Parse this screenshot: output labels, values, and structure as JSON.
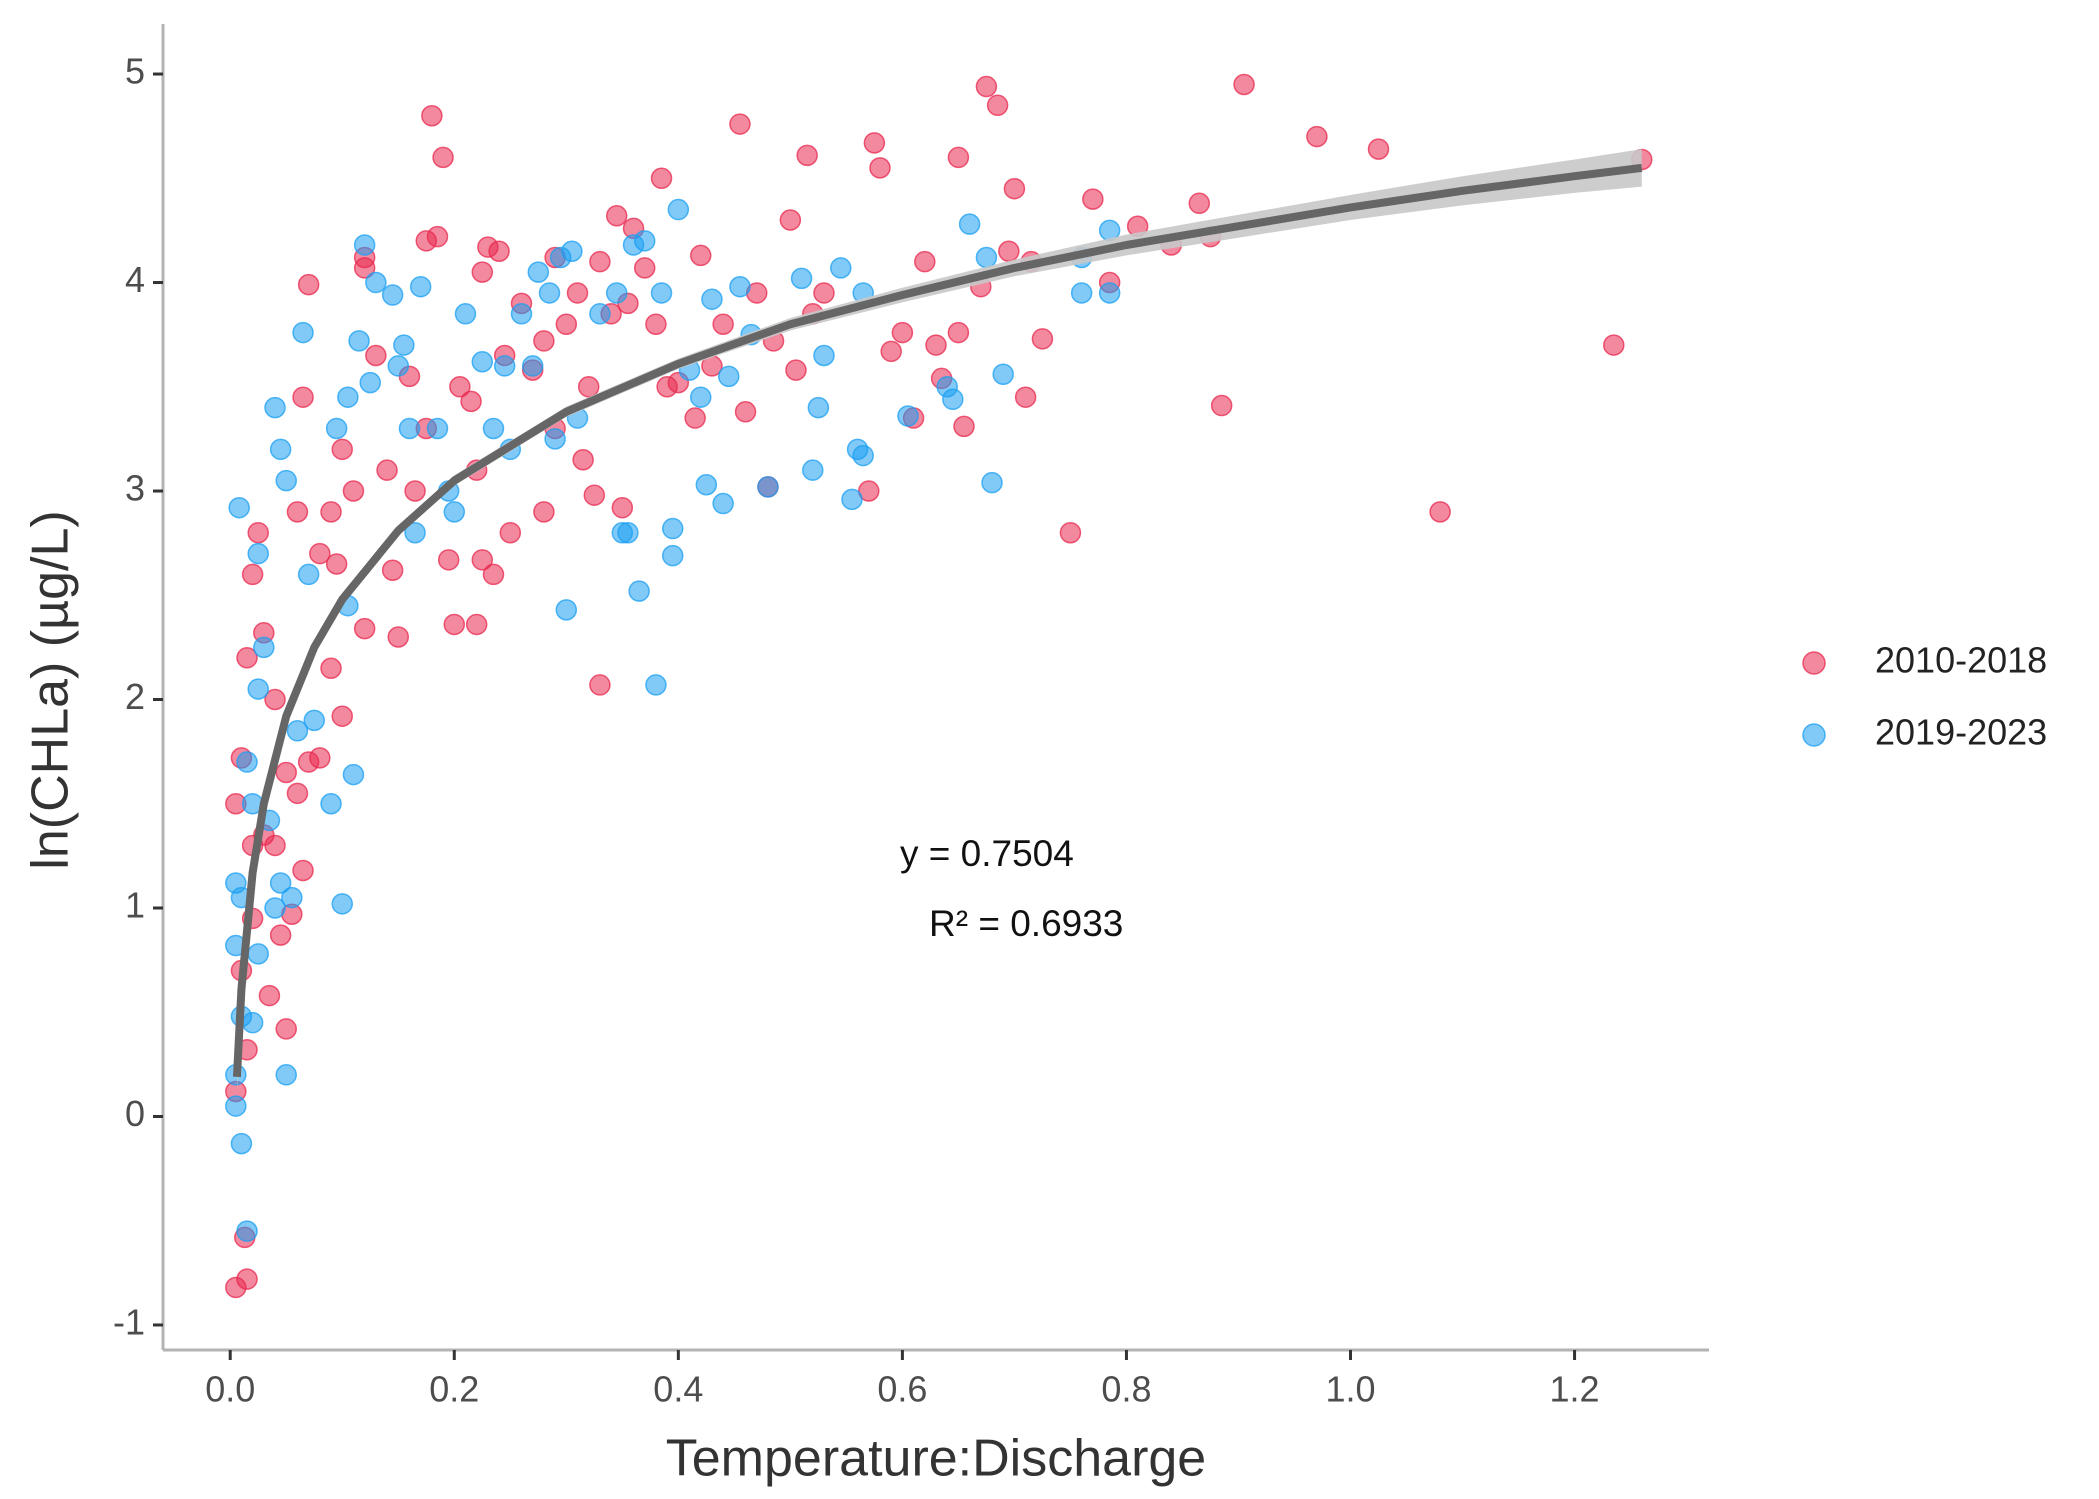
{
  "chart_data": {
    "type": "scatter",
    "x_label": "Temperature:Discharge",
    "y_label": "ln(CHLa) (µg/L)",
    "annotations": [
      "y =  0.7504",
      "R² =  0.6933"
    ],
    "xlim": [
      -0.06,
      1.32
    ],
    "ylim": [
      -1.12,
      5.24
    ],
    "xticks": [
      {
        "value": 0,
        "label": "0.0"
      },
      0.2,
      0.4,
      0.6,
      0.8,
      {
        "value": 1,
        "label": "1.0"
      },
      1.2
    ],
    "yticks": [
      -1,
      0,
      1,
      2,
      3,
      4,
      5
    ],
    "grid": false,
    "legend": "right",
    "series": [
      {
        "name": "2010-2018",
        "color": "#e8284e",
        "x": [
          0.18,
          0.19,
          0.175,
          0.185,
          0.07,
          0.12,
          0.12,
          0.225,
          0.23,
          0.24,
          0.26,
          0.28,
          0.29,
          0.3,
          0.31,
          0.32,
          0.33,
          0.34,
          0.345,
          0.36,
          0.355,
          0.37,
          0.38,
          0.385,
          0.39,
          0.4,
          0.42,
          0.415,
          0.43,
          0.44,
          0.455,
          0.46,
          0.47,
          0.48,
          0.485,
          0.5,
          0.505,
          0.515,
          0.52,
          0.53,
          0.57,
          0.575,
          0.58,
          0.59,
          0.6,
          0.61,
          0.62,
          0.63,
          0.635,
          0.65,
          0.65,
          0.655,
          0.67,
          0.675,
          0.685,
          0.695,
          0.7,
          0.71,
          0.715,
          0.725,
          0.75,
          0.77,
          0.785,
          0.81,
          0.84,
          0.865,
          0.875,
          0.885,
          0.905,
          0.97,
          1.025,
          1.08,
          1.235,
          1.26,
          0.005,
          0.015,
          0.013,
          0.005,
          0.015,
          0.01,
          0.02,
          0.02,
          0.03,
          0.04,
          0.035,
          0.05,
          0.055,
          0.045,
          0.005,
          0.01,
          0.015,
          0.02,
          0.025,
          0.03,
          0.04,
          0.05,
          0.06,
          0.07,
          0.08,
          0.065,
          0.09,
          0.1,
          0.06,
          0.065,
          0.08,
          0.09,
          0.095,
          0.1,
          0.11,
          0.12,
          0.13,
          0.14,
          0.145,
          0.15,
          0.16,
          0.165,
          0.175,
          0.195,
          0.2,
          0.205,
          0.215,
          0.22,
          0.22,
          0.225,
          0.235,
          0.245,
          0.25,
          0.27,
          0.28,
          0.29,
          0.315,
          0.325,
          0.33,
          0.35
        ],
        "y": [
          4.8,
          4.6,
          4.2,
          4.22,
          3.99,
          4.07,
          4.12,
          4.05,
          4.17,
          4.15,
          3.9,
          3.72,
          4.12,
          3.8,
          3.95,
          3.5,
          4.1,
          3.85,
          4.32,
          4.26,
          3.9,
          4.07,
          3.8,
          4.5,
          3.5,
          3.52,
          4.13,
          3.35,
          3.6,
          3.8,
          4.76,
          3.38,
          3.95,
          3.02,
          3.72,
          4.3,
          3.58,
          4.61,
          3.85,
          3.95,
          3.0,
          4.67,
          4.55,
          3.67,
          3.76,
          3.35,
          4.1,
          3.7,
          3.54,
          4.6,
          3.76,
          3.31,
          3.98,
          4.94,
          4.85,
          4.15,
          4.45,
          3.45,
          4.1,
          3.73,
          2.8,
          4.4,
          4.0,
          4.27,
          4.18,
          4.38,
          4.22,
          3.41,
          4.95,
          4.7,
          4.64,
          2.9,
          3.7,
          4.59,
          -0.82,
          -0.78,
          -0.58,
          0.12,
          0.32,
          0.7,
          0.95,
          1.3,
          1.35,
          1.3,
          0.58,
          0.42,
          0.97,
          0.87,
          1.5,
          1.72,
          2.2,
          2.6,
          2.8,
          2.32,
          2.0,
          1.65,
          1.55,
          1.7,
          1.72,
          1.18,
          2.15,
          1.92,
          2.9,
          3.45,
          2.7,
          2.9,
          2.65,
          3.2,
          3.0,
          2.34,
          3.65,
          3.1,
          2.62,
          2.3,
          3.55,
          3.0,
          3.3,
          2.67,
          2.36,
          3.5,
          3.43,
          2.36,
          3.1,
          2.67,
          2.6,
          3.65,
          2.8,
          3.58,
          2.9,
          3.3,
          3.15,
          2.98,
          2.07,
          2.92
        ]
      },
      {
        "name": "2019-2023",
        "color": "#1a9ff2",
        "x": [
          0.005,
          0.01,
          0.015,
          0.005,
          0.01,
          0.02,
          0.025,
          0.005,
          0.005,
          0.01,
          0.015,
          0.02,
          0.025,
          0.03,
          0.035,
          0.04,
          0.045,
          0.05,
          0.055,
          0.06,
          0.008,
          0.025,
          0.04,
          0.045,
          0.05,
          0.065,
          0.07,
          0.075,
          0.09,
          0.1,
          0.11,
          0.105,
          0.095,
          0.105,
          0.115,
          0.12,
          0.125,
          0.13,
          0.145,
          0.15,
          0.155,
          0.16,
          0.165,
          0.17,
          0.185,
          0.195,
          0.2,
          0.21,
          0.225,
          0.235,
          0.245,
          0.25,
          0.26,
          0.27,
          0.275,
          0.285,
          0.29,
          0.295,
          0.3,
          0.305,
          0.31,
          0.33,
          0.345,
          0.35,
          0.355,
          0.36,
          0.365,
          0.37,
          0.38,
          0.385,
          0.395,
          0.395,
          0.4,
          0.41,
          0.42,
          0.425,
          0.43,
          0.44,
          0.445,
          0.455,
          0.465,
          0.48,
          0.51,
          0.52,
          0.525,
          0.53,
          0.545,
          0.555,
          0.56,
          0.565,
          0.565,
          0.605,
          0.64,
          0.645,
          0.66,
          0.675,
          0.68,
          0.69,
          0.76,
          0.76,
          0.785,
          0.785
        ],
        "y": [
          0.05,
          -0.13,
          -0.55,
          0.2,
          0.48,
          0.45,
          0.78,
          0.82,
          1.12,
          1.05,
          1.7,
          1.5,
          2.05,
          2.25,
          1.42,
          1.0,
          1.12,
          0.2,
          1.05,
          1.85,
          2.92,
          2.7,
          3.4,
          3.2,
          3.05,
          3.76,
          2.6,
          1.9,
          1.5,
          1.02,
          1.64,
          2.45,
          3.3,
          3.45,
          3.72,
          4.18,
          3.52,
          4.0,
          3.94,
          3.6,
          3.7,
          3.3,
          2.8,
          3.98,
          3.3,
          3.0,
          2.9,
          3.85,
          3.62,
          3.3,
          3.6,
          3.2,
          3.85,
          3.6,
          4.05,
          3.95,
          3.25,
          4.12,
          2.43,
          4.15,
          3.35,
          3.85,
          3.95,
          2.8,
          2.8,
          4.18,
          2.52,
          4.2,
          2.07,
          3.95,
          2.82,
          2.69,
          4.35,
          3.58,
          3.45,
          3.03,
          3.92,
          2.94,
          3.55,
          3.98,
          3.75,
          3.02,
          4.02,
          3.1,
          3.4,
          3.65,
          4.07,
          2.96,
          3.2,
          3.17,
          3.95,
          3.36,
          3.5,
          3.44,
          4.28,
          4.12,
          3.04,
          3.56,
          3.95,
          4.12,
          4.25,
          3.95
        ]
      }
    ],
    "fit": {
      "color": "#666666",
      "band_color": "#c8c8c8",
      "x": [
        0.006,
        0.01,
        0.02,
        0.03,
        0.05,
        0.075,
        0.1,
        0.15,
        0.2,
        0.3,
        0.4,
        0.5,
        0.6,
        0.7,
        0.8,
        0.9,
        1.0,
        1.1,
        1.2,
        1.26
      ],
      "y": [
        0.19,
        0.61,
        1.17,
        1.5,
        1.92,
        2.25,
        2.48,
        2.81,
        3.05,
        3.38,
        3.61,
        3.8,
        3.94,
        4.07,
        4.18,
        4.27,
        4.36,
        4.44,
        4.51,
        4.55
      ],
      "lower": [
        0.11,
        0.55,
        1.13,
        1.47,
        1.895,
        2.225,
        2.455,
        2.785,
        3.025,
        3.355,
        3.585,
        3.77,
        3.905,
        4.03,
        4.13,
        4.215,
        4.3,
        4.37,
        4.43,
        4.46
      ],
      "upper": [
        0.27,
        0.67,
        1.21,
        1.53,
        1.945,
        2.275,
        2.505,
        2.835,
        3.075,
        3.405,
        3.635,
        3.83,
        3.975,
        4.11,
        4.23,
        4.325,
        4.42,
        4.51,
        4.59,
        4.64
      ]
    }
  }
}
